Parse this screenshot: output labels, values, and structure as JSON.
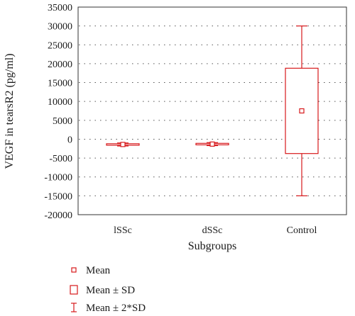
{
  "chart_data": {
    "type": "box",
    "xlabel": "Subgroups",
    "ylabel": "VEGF in tearsR2 (pg/ml)",
    "ylim": [
      -20000,
      35000
    ],
    "y_ticks": [
      35000,
      30000,
      25000,
      20000,
      15000,
      10000,
      5000,
      0,
      -5000,
      -10000,
      -15000,
      -20000
    ],
    "y_tick_labels": [
      "35000",
      "30000",
      "25000",
      "20000",
      "15000",
      "10000",
      "5000",
      "0",
      "-5000",
      "-10000",
      "-15000",
      "-20000"
    ],
    "grid": "horizontal dotted",
    "color": "#d7191c",
    "categories": [
      "lSSc",
      "dSSc",
      "Control"
    ],
    "groups": [
      {
        "name": "lSSc",
        "mean": -1400,
        "sd_low": -1600,
        "sd_high": -1200,
        "sd2_low": -1800,
        "sd2_high": -1000
      },
      {
        "name": "dSSc",
        "mean": -1300,
        "sd_low": -1500,
        "sd_high": -1100,
        "sd2_low": -1700,
        "sd2_high": -900
      },
      {
        "name": "Control",
        "mean": 7500,
        "sd_low": -3800,
        "sd_high": 18800,
        "sd2_low": -15000,
        "sd2_high": 30000
      }
    ],
    "legend_position": "bottom-left",
    "legend": [
      {
        "symbol": "small-square",
        "label": "Mean"
      },
      {
        "symbol": "box",
        "label": "Mean ± SD"
      },
      {
        "symbol": "whisker",
        "label": "Mean ± 2*SD"
      }
    ]
  }
}
